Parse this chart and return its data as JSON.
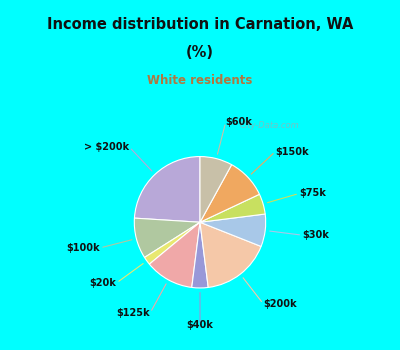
{
  "title_line1": "Income distribution in Carnation, WA",
  "title_line2": "(%)",
  "subtitle": "White residents",
  "title_color": "#111111",
  "subtitle_color": "#b07840",
  "bg_cyan": "#00ffff",
  "bg_chart_color1": "#d0ede0",
  "bg_chart_color2": "#e8f8f8",
  "slices": [
    {
      "label": "> $200k",
      "value": 24.0,
      "color": "#b8a8d8"
    },
    {
      "label": "$100k",
      "value": 10.0,
      "color": "#b0c8a0"
    },
    {
      "label": "$20k",
      "value": 2.0,
      "color": "#e8e870"
    },
    {
      "label": "$125k",
      "value": 12.0,
      "color": "#f0a8a8"
    },
    {
      "label": "$40k",
      "value": 4.0,
      "color": "#9898d8"
    },
    {
      "label": "$200k",
      "value": 17.0,
      "color": "#f5c8a8"
    },
    {
      "label": "$30k",
      "value": 8.0,
      "color": "#a8c8e8"
    },
    {
      "label": "$75k",
      "value": 5.0,
      "color": "#c8e060"
    },
    {
      "label": "$150k",
      "value": 10.0,
      "color": "#f0a860"
    },
    {
      "label": "$60k",
      "value": 8.0,
      "color": "#c8c0a8"
    }
  ],
  "start_angle": 90,
  "label_fontsize": 7.0,
  "label_color": "#111111",
  "watermark": "City-Data.com"
}
